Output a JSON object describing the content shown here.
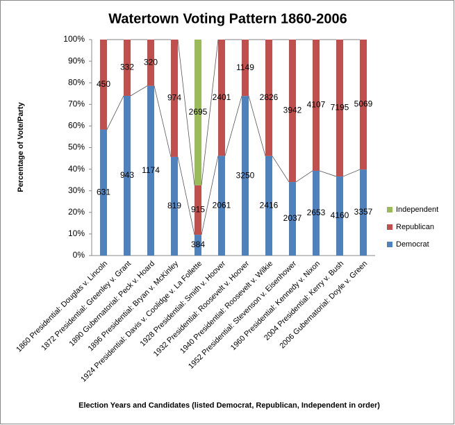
{
  "chart_data": {
    "type": "bar",
    "stacking": "percent",
    "series_lines": true,
    "title": "Watertown Voting Pattern 1860-2006",
    "y_label": "Percentage of Vote/Party",
    "x_label": "Election Years and Candidates (listed Democrat, Republican, Independent in order)",
    "categories": [
      "1860 Presidential: Douglas v. Lincoln",
      "1872 Presidential: Greenley v. Grant",
      "1890 Gubernatorial: Peck v. Hoard",
      "1896 Presidential: Bryan v. McKinley",
      "1924 Presidential: Davis v. Coolidge v. La Follette",
      "1928 Presidential: Smith v. Hoover",
      "1932 Presidential: Roosevelt v. Hoover",
      "1940 Presidential: Roosevelt v. Wilkie",
      "1952 Presidential: Stevenson v. Eisenhower",
      "1960 Presidential: Kennedy v. Nixon",
      "2004 Presidential: Kerry v. Bush",
      "2006 Gubernatorial: Doyle v. Green"
    ],
    "series": [
      {
        "name": "Democrat",
        "color": "#4f81bd",
        "values": [
          631,
          943,
          1174,
          819,
          384,
          2061,
          3250,
          2416,
          2037,
          2653,
          4160,
          3357
        ]
      },
      {
        "name": "Republican",
        "color": "#c0504d",
        "values": [
          450,
          332,
          320,
          974,
          915,
          2401,
          1149,
          2826,
          3942,
          4107,
          7195,
          5069
        ]
      },
      {
        "name": "Independent",
        "color": "#9bbb59",
        "values": [
          null,
          null,
          null,
          null,
          2695,
          null,
          null,
          null,
          null,
          null,
          null,
          null
        ]
      }
    ],
    "ylim": [
      0,
      100
    ],
    "yticks": [
      {
        "value": 0,
        "label": "0%"
      },
      {
        "value": 10,
        "label": "10%"
      },
      {
        "value": 20,
        "label": "20%"
      },
      {
        "value": 30,
        "label": "30%"
      },
      {
        "value": 40,
        "label": "40%"
      },
      {
        "value": 50,
        "label": "50%"
      },
      {
        "value": 60,
        "label": "60%"
      },
      {
        "value": 70,
        "label": "70%"
      },
      {
        "value": 80,
        "label": "80%"
      },
      {
        "value": 90,
        "label": "90%"
      },
      {
        "value": 100,
        "label": "100%"
      }
    ],
    "legend": "right"
  }
}
